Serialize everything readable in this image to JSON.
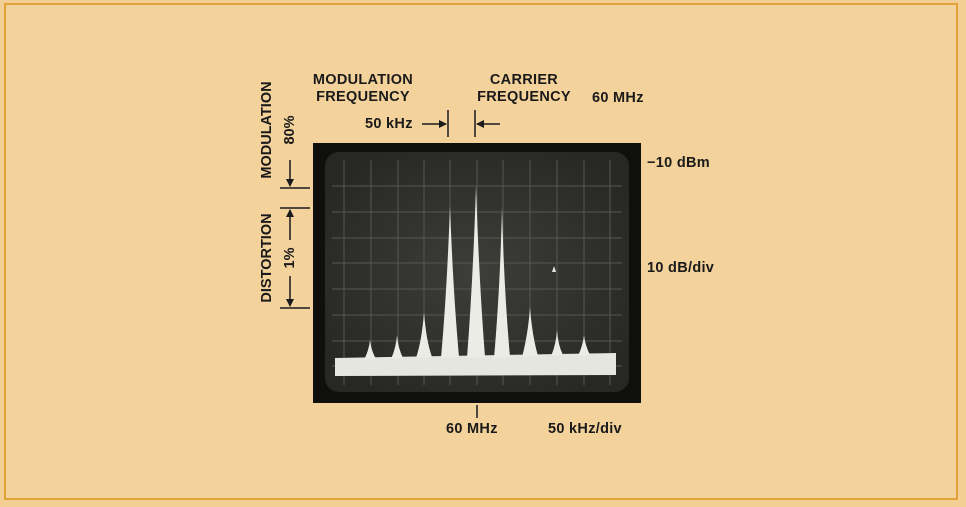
{
  "labels": {
    "modulation_frequency": [
      "MODULATION",
      "FREQUENCY"
    ],
    "carrier_frequency": [
      "CARRIER",
      "FREQUENCY"
    ],
    "carrier_value": "60 MHz",
    "mod_spacing": "50 kHz",
    "ref_level": "−10 dBm",
    "vertical_scale": "10 dB/div",
    "center_freq": "60 MHz",
    "horizontal_scale": "50 kHz/div",
    "modulation": "MODULATION",
    "modulation_value": "80%",
    "distortion": "DISTORTION",
    "distortion_value": "1%"
  },
  "colors": {
    "background": "#f4d29b",
    "border": "#e2a23a",
    "screen": "#2f302d",
    "trace": "#e8e8e2"
  }
}
